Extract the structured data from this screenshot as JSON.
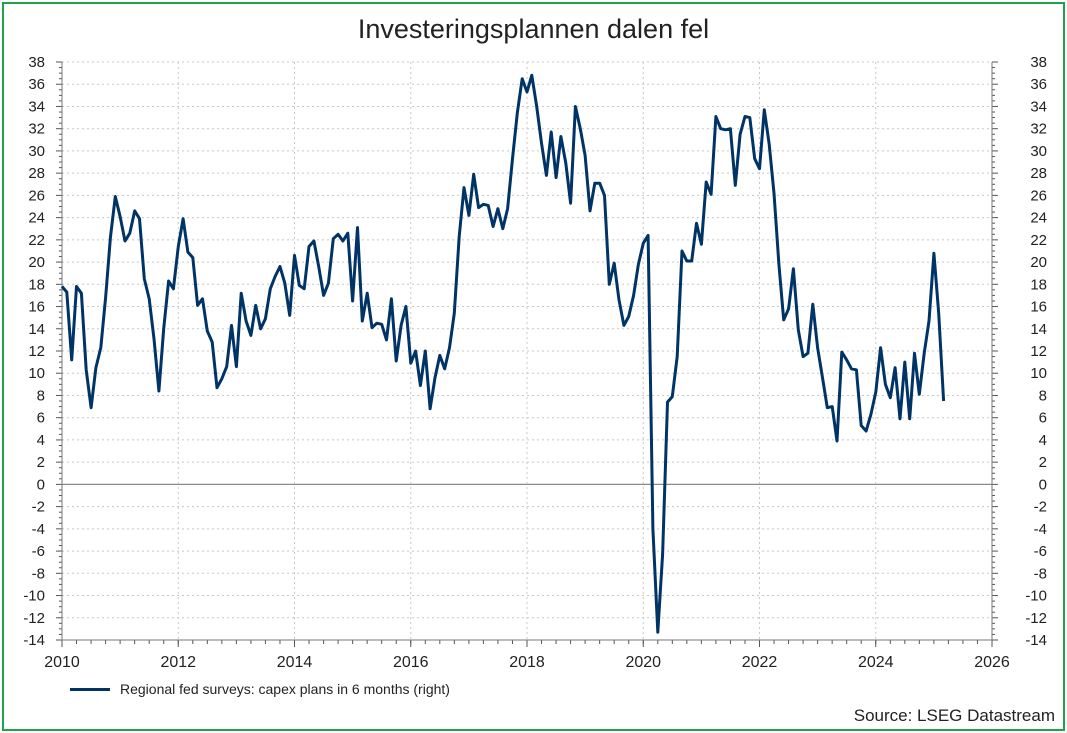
{
  "chart_data": {
    "type": "line",
    "title": "Investeringsplannen dalen fel",
    "xlabel": "",
    "ylabel": "",
    "xlim": [
      2010,
      2026
    ],
    "ylim": [
      -14,
      38
    ],
    "x_ticks": [
      "2010",
      "2012",
      "2014",
      "2016",
      "2018",
      "2020",
      "2022",
      "2024",
      "2026"
    ],
    "y_ticks": [
      38,
      36,
      34,
      32,
      30,
      28,
      26,
      24,
      22,
      20,
      18,
      16,
      14,
      12,
      10,
      8,
      6,
      4,
      2,
      0,
      -2,
      -4,
      -6,
      -8,
      -10,
      -12,
      -14
    ],
    "grid": true,
    "legend_position": "bottom-left",
    "series": [
      {
        "name": "Regional fed surveys: capex plans in 6 months (right)",
        "color": "#003366",
        "x_start": "2010-01",
        "frequency": "monthly",
        "values": [
          17.8,
          17.3,
          11.2,
          17.8,
          17.2,
          10.3,
          6.9,
          10.5,
          12.3,
          16.8,
          22.2,
          25.9,
          24.1,
          21.9,
          22.6,
          24.6,
          23.9,
          18.5,
          16.7,
          13.1,
          8.4,
          14,
          18.3,
          17.6,
          21.4,
          23.9,
          20.9,
          20.4,
          16.1,
          16.7,
          13.8,
          12.8,
          8.7,
          9.5,
          10.6,
          14.3,
          10.6,
          17.2,
          14.7,
          13.4,
          16.1,
          14,
          14.9,
          17.6,
          18.7,
          19.6,
          18.1,
          15.2,
          20.6,
          17.9,
          17.6,
          21.4,
          21.9,
          19.6,
          17,
          18.1,
          22.1,
          22.5,
          21.9,
          22.6,
          16.5,
          23.1,
          14.7,
          17.2,
          14.1,
          14.5,
          14.4,
          13,
          16.7,
          11.1,
          14.3,
          16,
          10.9,
          12,
          8.9,
          12,
          6.8,
          9.6,
          11.6,
          10.4,
          12.3,
          15.4,
          22.3,
          26.7,
          24.2,
          27.9,
          24.9,
          25.2,
          25.1,
          23.2,
          24.8,
          23,
          24.8,
          29.3,
          33.4,
          36.5,
          35.3,
          36.8,
          34,
          30.7,
          27.8,
          31.7,
          27.6,
          31.3,
          28.9,
          25.3,
          34,
          32,
          29.6,
          24.6,
          27.1,
          27.1,
          26,
          18,
          19.9,
          16.6,
          14.3,
          15.1,
          17,
          19.8,
          21.7,
          22.4,
          -4,
          -13.3,
          -6.3,
          7.4,
          7.9,
          11.5,
          21,
          20.1,
          20.1,
          23.5,
          21.6,
          27.2,
          26.1,
          33.1,
          32,
          31.9,
          32,
          26.9,
          31.5,
          33.1,
          33,
          29.3,
          28.4,
          33.7,
          30.6,
          26.2,
          19.8,
          14.8,
          15.8,
          19.4,
          13.9,
          11.5,
          11.8,
          16.2,
          12.3,
          9.6,
          6.9,
          7,
          3.9,
          11.9,
          11.2,
          10.4,
          10.3,
          5.3,
          4.8,
          6.3,
          8.3,
          12.3,
          9,
          7.8,
          10.5,
          5.9,
          11,
          5.9,
          11.8,
          8.1,
          11.8,
          14.7,
          20.8,
          15.4,
          7.5
        ]
      }
    ],
    "source": "Source: LSEG Datastream"
  }
}
